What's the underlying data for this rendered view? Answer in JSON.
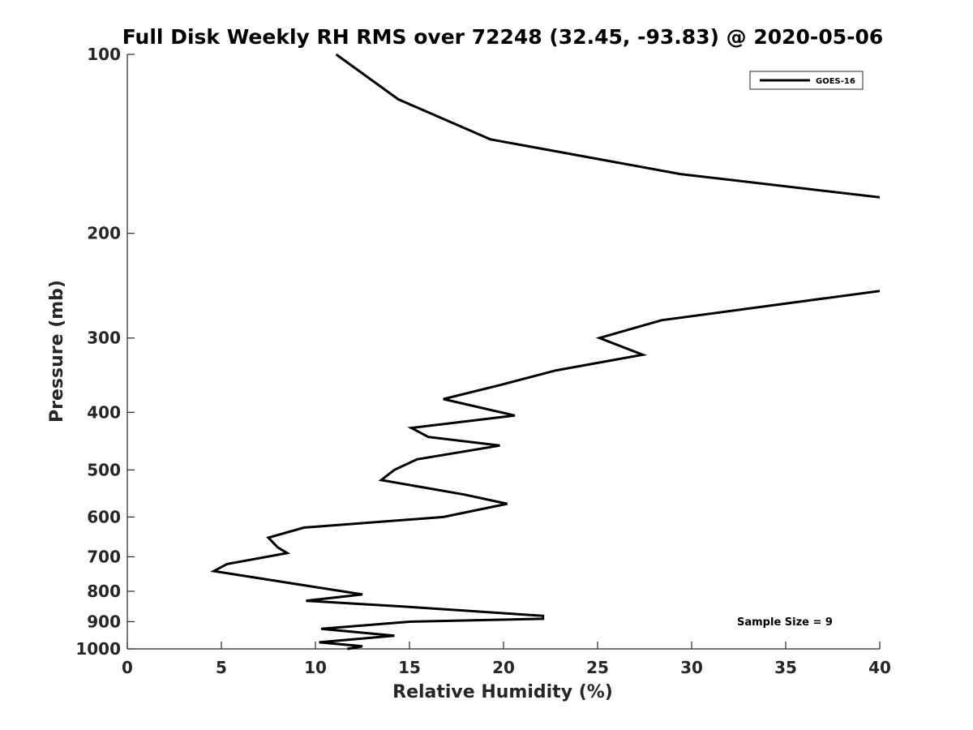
{
  "chart_data": {
    "type": "line",
    "title": "Full Disk Weekly RH RMS over 72248 (32.45, -93.83) @ 2020-05-06",
    "xlabel": "Relative Humidity (%)",
    "ylabel": "Pressure (mb)",
    "xlim": [
      0,
      40
    ],
    "ylim": [
      100,
      1000
    ],
    "yscale": "log",
    "y_reversed": true,
    "xticks": [
      0,
      5,
      10,
      15,
      20,
      25,
      30,
      35,
      40
    ],
    "yticks": [
      100,
      200,
      300,
      400,
      500,
      600,
      700,
      800,
      900,
      1000
    ],
    "grid": false,
    "legend_position": "top-right",
    "annotation": "Sample Size = 9",
    "series": [
      {
        "name": "GOES-16",
        "color": "#000000",
        "x": [
          11.1,
          14.4,
          19.3,
          29.4,
          40.0,
          null,
          40.0,
          28.4,
          25.1,
          27.4,
          22.8,
          19.8,
          16.8,
          20.6,
          15.1,
          16.0,
          19.8,
          15.4,
          14.2,
          13.5,
          17.9,
          20.2,
          16.8,
          9.4,
          7.5,
          8.0,
          8.5,
          5.3,
          4.6,
          12.5,
          9.5,
          15.0,
          22.1,
          22.1,
          15.0,
          10.3,
          14.2,
          10.2,
          12.5,
          11.7
        ],
        "y": [
          100,
          119,
          139,
          159,
          174,
          null,
          250,
          280,
          300,
          320,
          340,
          360,
          380,
          405,
          425,
          440,
          455,
          480,
          500,
          520,
          550,
          570,
          600,
          625,
          650,
          675,
          690,
          720,
          740,
          810,
          830,
          850,
          880,
          890,
          900,
          925,
          950,
          975,
          990,
          1000
        ]
      }
    ]
  }
}
